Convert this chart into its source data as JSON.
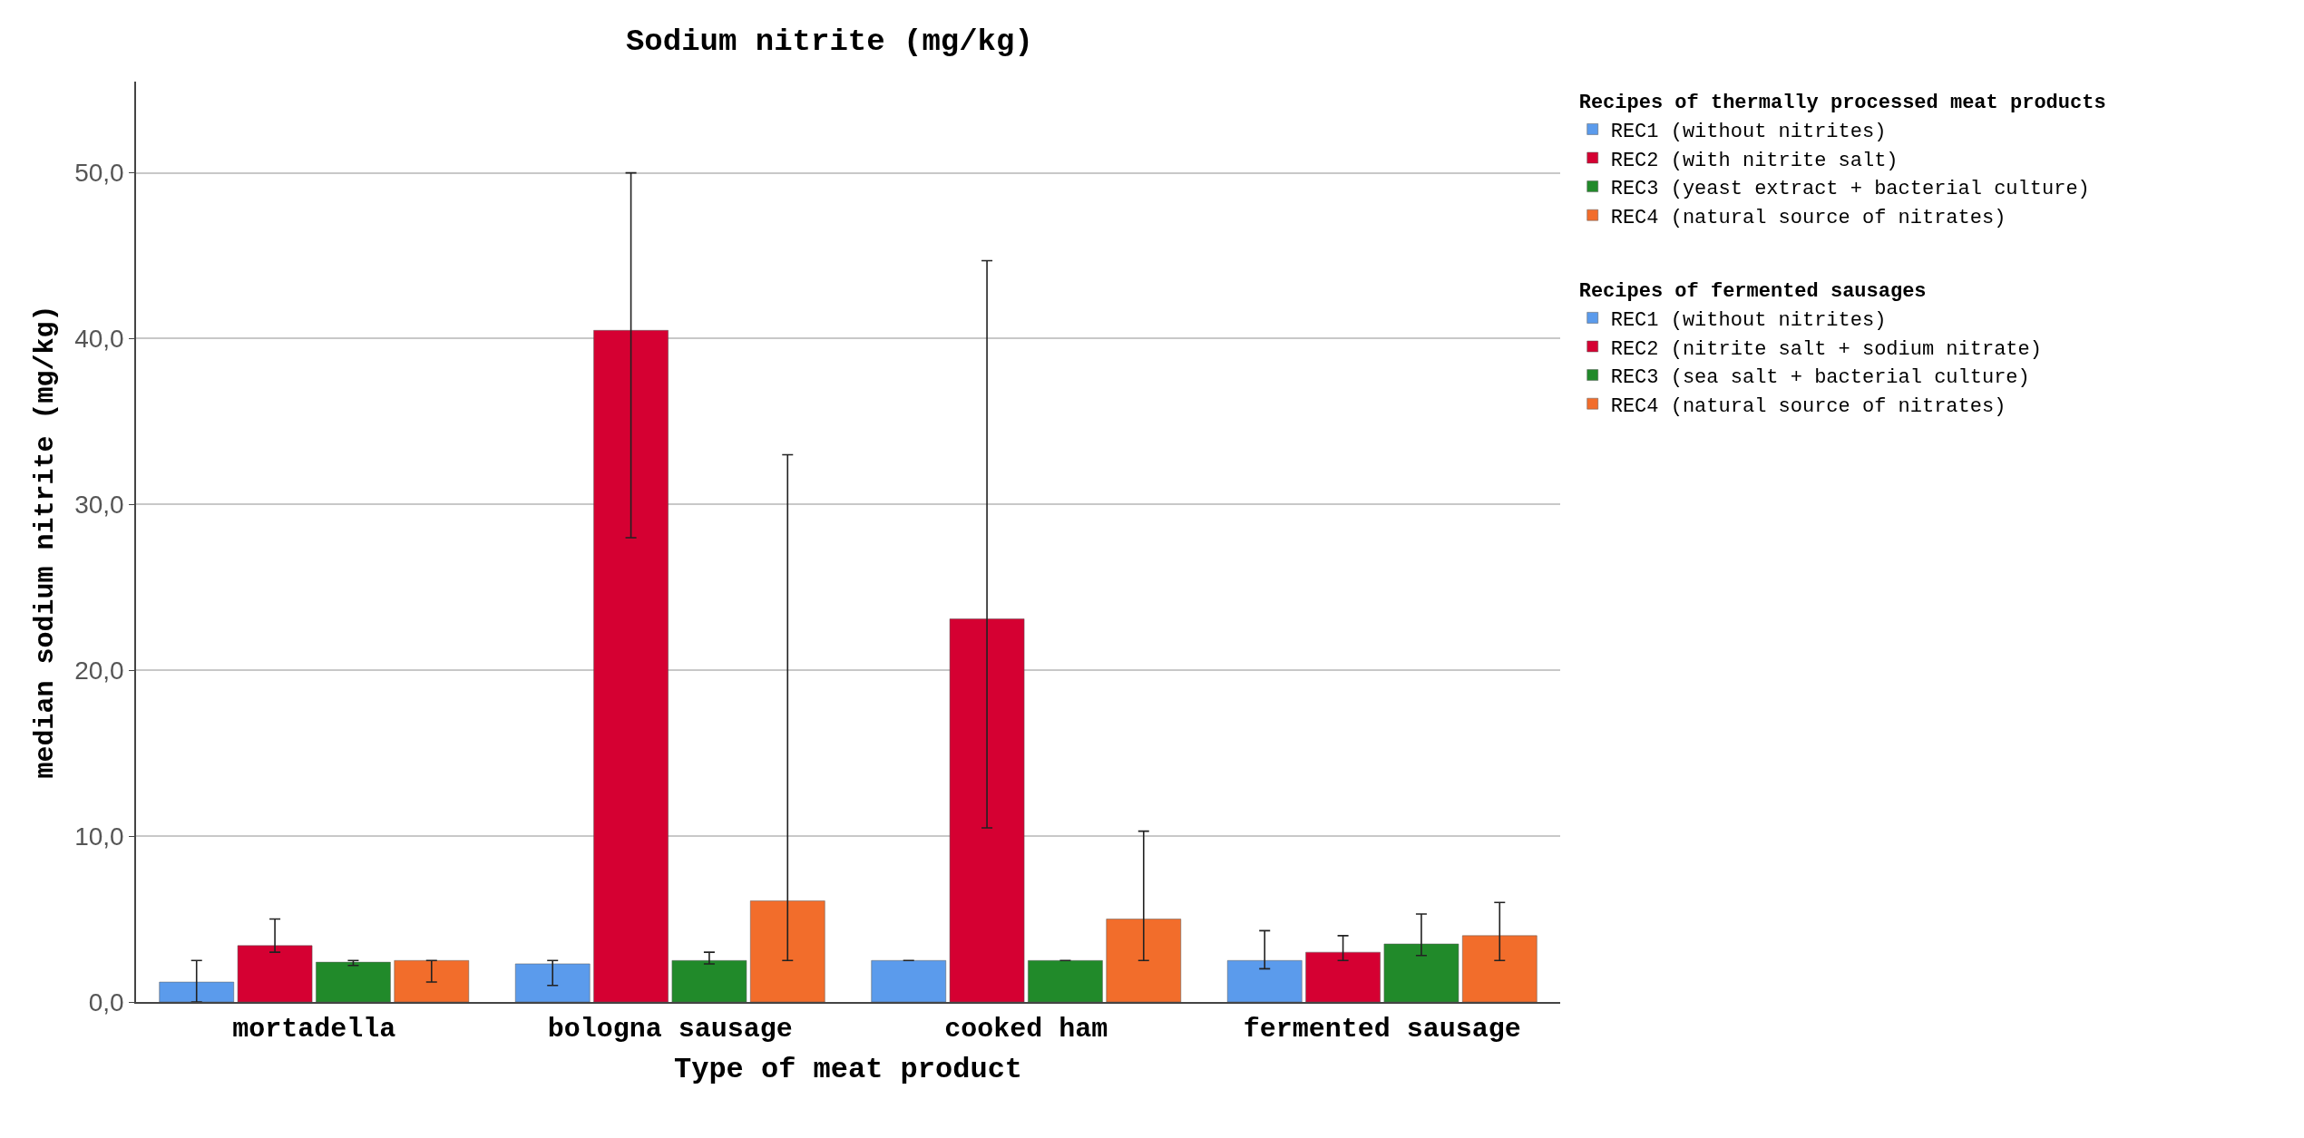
{
  "chart_data": {
    "type": "bar",
    "title": "Sodium nitrite (mg/kg)",
    "xlabel": "Type of meat product",
    "ylabel": "median sodium nitrite (mg/kg)",
    "categories": [
      "mortadella",
      "bologna sausage",
      "cooked ham",
      "fermented sausage"
    ],
    "legend_title": [
      "Recipes of thermally processed meat products",
      "Recipes of fermented sausages"
    ],
    "series": [
      {
        "name": "REC1 (without nitrites)",
        "color": "#5b9bec",
        "values": [
          1.2,
          2.3,
          2.5,
          null
        ],
        "errors": [
          [
            0.0,
            2.5
          ],
          [
            1.0,
            2.5
          ],
          null,
          null
        ]
      },
      {
        "name": "REC2 (with nitrite salt)",
        "color": "#d50032",
        "values": [
          3.4,
          40.5,
          23.1,
          null
        ],
        "errors": [
          [
            3.0,
            5.0
          ],
          [
            28.0,
            50.0
          ],
          [
            10.5,
            44.7
          ],
          null
        ]
      },
      {
        "name": "REC3 (yeast extract + bacterial culture)",
        "color": "#218a2a",
        "values": [
          2.4,
          2.5,
          2.5,
          null
        ],
        "errors": [
          [
            2.2,
            2.5
          ],
          [
            2.3,
            3.0
          ],
          null,
          null
        ]
      },
      {
        "name": "REC4 (natural source of nitrates)",
        "color": "#f26d2b",
        "values": [
          2.5,
          6.1,
          5.0,
          null
        ],
        "errors": [
          [
            1.2,
            2.5
          ],
          [
            2.5,
            33.0
          ],
          [
            2.5,
            10.3
          ],
          null
        ]
      },
      {
        "name": "REC1 (without nitrites)",
        "color": "#5b9bec",
        "values": [
          null,
          null,
          null,
          2.5
        ],
        "errors": [
          null,
          null,
          null,
          [
            2.0,
            4.3
          ]
        ]
      },
      {
        "name": "REC2 (nitrite salt + sodium nitrate)",
        "color": "#d50032",
        "values": [
          null,
          null,
          null,
          3.0
        ],
        "errors": [
          null,
          null,
          null,
          [
            2.5,
            4.0
          ]
        ]
      },
      {
        "name": "REC3 (sea salt + bacterial culture)",
        "color": "#218a2a",
        "values": [
          null,
          null,
          null,
          3.5
        ],
        "errors": [
          null,
          null,
          null,
          [
            2.8,
            5.3
          ]
        ]
      },
      {
        "name": "REC4 (natural source of nitrates)",
        "color": "#f26d2b",
        "values": [
          null,
          null,
          null,
          4.0
        ],
        "errors": [
          null,
          null,
          null,
          [
            2.5,
            6.0
          ]
        ]
      }
    ],
    "ylim": [
      0,
      55.5
    ],
    "yticks": [
      {
        "value": 0,
        "label": "0,0"
      },
      {
        "value": 10,
        "label": "10,0"
      },
      {
        "value": 20,
        "label": "20,0"
      },
      {
        "value": 30,
        "label": "30,0"
      },
      {
        "value": 40,
        "label": "40,0"
      },
      {
        "value": 50,
        "label": "50,0"
      }
    ],
    "grid": "y",
    "legend": "top right"
  }
}
